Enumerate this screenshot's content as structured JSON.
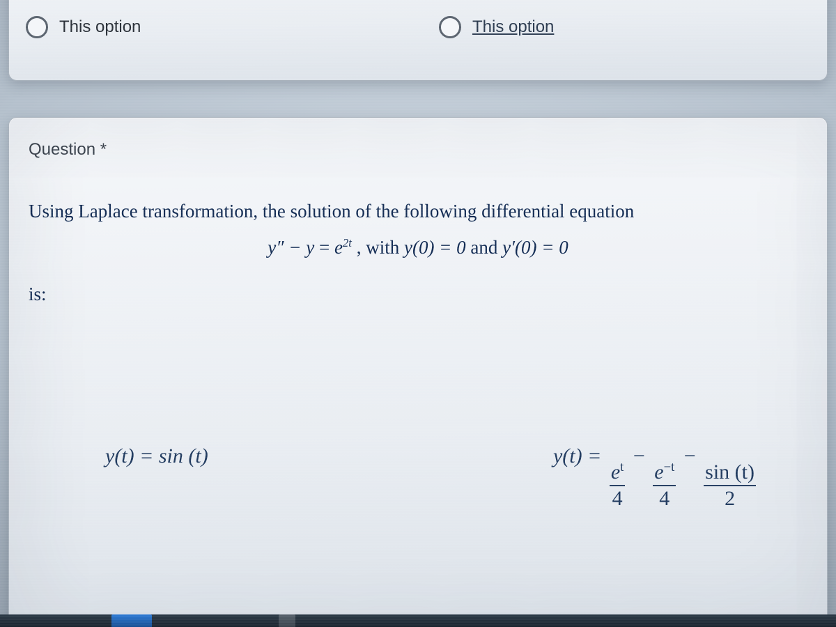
{
  "colors": {
    "page_bg_center": "#c9d3dd",
    "page_bg_edge": "#6c7886",
    "card_bg_top": "#f5f7fa",
    "card_bg_bottom": "#dbe1e8",
    "card_border": "#a9b2bc",
    "text_body": "#2b3138",
    "text_math": "#112a52",
    "radio_border": "#5a636e",
    "taskbar_top": "#2c3a47",
    "taskbar_bottom": "#1b2530",
    "taskbar_accent": "#2e7bd6"
  },
  "typography": {
    "ui_font": "Arial",
    "math_font": "Times New Roman",
    "option_label_pt": 24,
    "question_title_pt": 24,
    "stem_pt": 27,
    "answer_pt": 30
  },
  "top_card": {
    "options": [
      {
        "label": "This option",
        "selected": false,
        "underlined": false
      },
      {
        "label": "This option",
        "selected": false,
        "underlined": true
      }
    ]
  },
  "question": {
    "title": "Question *",
    "stem_line1": "Using Laplace transformation, the solution of the following differential equation",
    "stem_is": "is:",
    "equation": {
      "diffeq_lhs": "y″ − y",
      "diffeq_rhs_base": "e",
      "diffeq_rhs_exp": "2t",
      "with_text": ", with ",
      "ic1": "y(0) = 0",
      "and_text": " and ",
      "ic2": "y′(0) = 0"
    },
    "answers": {
      "a": {
        "expr": "y(t) = sin (t)"
      },
      "b": {
        "prefix": "y(t) = ",
        "terms": [
          {
            "num_base": "e",
            "num_exp": "t",
            "den": "4",
            "sign_after": " − "
          },
          {
            "num_base": "e",
            "num_exp": "−t",
            "den": "4",
            "sign_after": " − "
          },
          {
            "num_plain": "sin (t)",
            "den": "2",
            "sign_after": ""
          }
        ]
      }
    }
  }
}
